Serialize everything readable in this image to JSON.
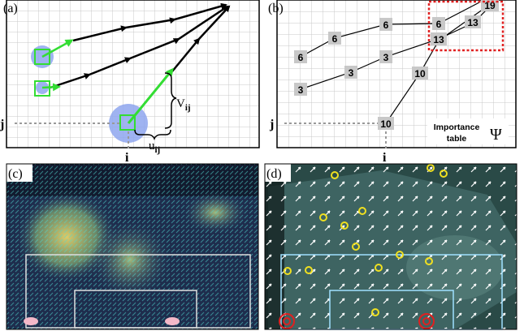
{
  "panels": {
    "a": {
      "tag": "(a)",
      "j_label": "j",
      "i_label": "i",
      "v_label": "V",
      "v_sub": "ij",
      "u_label": "u",
      "u_sub": "ij"
    },
    "b": {
      "tag": "(b)",
      "j_label": "j",
      "i_label": "i",
      "values": [
        "6",
        "6",
        "6",
        "6",
        "19",
        "13",
        "13",
        "3",
        "3",
        "3",
        "10",
        "10"
      ],
      "importance_line1": "Importance",
      "importance_line2": "table",
      "psi": "Ψ"
    },
    "c": {
      "tag": "(c)"
    },
    "d": {
      "tag": "(d)"
    }
  },
  "colors": {
    "arrow": "#000000",
    "green": "#33dd33",
    "blob": "#8ea6ee",
    "highlight": "#e02020",
    "cell": "#c8c8c8",
    "grid": "#c8c8c8",
    "dotted": "#999999"
  }
}
